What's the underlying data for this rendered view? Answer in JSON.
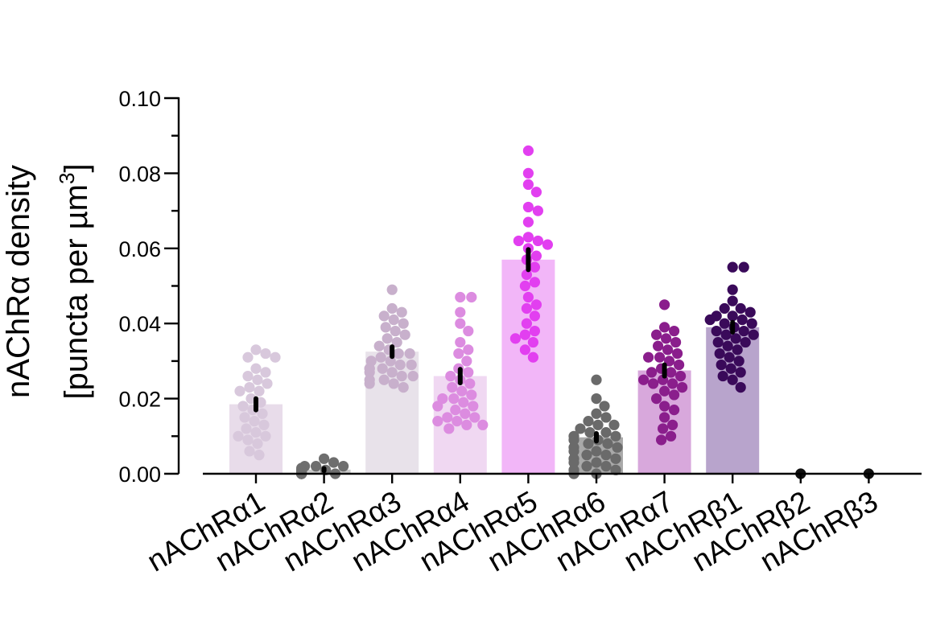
{
  "chart_data": {
    "type": "bar",
    "title": "",
    "ylabel_lines": [
      "nAChRα density",
      "[puncta per µm",
      "3",
      "]"
    ],
    "xlabel": "",
    "ylim": [
      0,
      0.1
    ],
    "y_major_ticks": [
      0,
      0.02,
      0.04,
      0.06,
      0.08,
      0.1
    ],
    "y_tick_labels": [
      "0.00",
      "0.02",
      "0.04",
      "0.06",
      "0.08",
      "0.10"
    ],
    "y_minor_ticks": [
      0.01,
      0.03,
      0.05,
      0.07,
      0.09
    ],
    "grid": false,
    "legend": "none",
    "categories": [
      "nAChRα1",
      "nAChRα2",
      "nAChRα3",
      "nAChRα4",
      "nAChRα5",
      "nAChRα6",
      "nAChRα7",
      "nAChRβ1",
      "nAChRβ2",
      "nAChRβ3"
    ],
    "means": [
      0.0185,
      0.0011,
      0.0325,
      0.026,
      0.057,
      0.0097,
      0.0275,
      0.039,
      0,
      0
    ],
    "sem": [
      0.0015,
      0.0003,
      0.0013,
      0.0018,
      0.0027,
      0.001,
      0.0015,
      0.0013,
      0,
      0
    ],
    "bar_colors": [
      "#e8dcea",
      "#cccccc",
      "#e8e2ea",
      "#f0d8f2",
      "#f2b6f8",
      "#a9a9a9",
      "#d8a8dc",
      "#b8a4cc",
      "#ffffff",
      "#ffffff"
    ],
    "point_colors": [
      "#d8c8dc",
      "#6e6e6e",
      "#c8b0cc",
      "#dc8ce0",
      "#e23ff0",
      "#6a6a6a",
      "#8a1e8c",
      "#3a0a5a",
      "#111111",
      "#111111"
    ],
    "points": [
      [
        0.033,
        0.032,
        0.031,
        0.031,
        0.028,
        0.027,
        0.026,
        0.025,
        0.023,
        0.022,
        0.022,
        0.02,
        0.019,
        0.018,
        0.017,
        0.016,
        0.014,
        0.013,
        0.012,
        0.011,
        0.01,
        0.01,
        0.009,
        0.008,
        0.006,
        0.005,
        0.024,
        0.015
      ],
      [
        0.004,
        0.003,
        0.002,
        0.002,
        0.002,
        0.001,
        0.001,
        0.001,
        0.001,
        0.0005,
        0.0005,
        0.0,
        0.0,
        0.0,
        0.0,
        0.0,
        0.0,
        0.0,
        0.0,
        0.0,
        0.0,
        0.0005,
        0.001,
        0.0015
      ],
      [
        0.049,
        0.044,
        0.043,
        0.042,
        0.041,
        0.04,
        0.039,
        0.038,
        0.037,
        0.036,
        0.035,
        0.034,
        0.033,
        0.032,
        0.031,
        0.03,
        0.029,
        0.029,
        0.028,
        0.028,
        0.027,
        0.027,
        0.026,
        0.026,
        0.025,
        0.024,
        0.024,
        0.023,
        0.032,
        0.03,
        0.028,
        0.025
      ],
      [
        0.047,
        0.047,
        0.043,
        0.04,
        0.038,
        0.035,
        0.033,
        0.032,
        0.03,
        0.028,
        0.027,
        0.026,
        0.025,
        0.024,
        0.023,
        0.022,
        0.021,
        0.02,
        0.019,
        0.018,
        0.017,
        0.016,
        0.015,
        0.014,
        0.014,
        0.013,
        0.013,
        0.012,
        0.02,
        0.018,
        0.015
      ],
      [
        0.086,
        0.08,
        0.077,
        0.075,
        0.071,
        0.07,
        0.067,
        0.063,
        0.062,
        0.062,
        0.061,
        0.06,
        0.058,
        0.057,
        0.055,
        0.053,
        0.051,
        0.05,
        0.047,
        0.045,
        0.044,
        0.042,
        0.04,
        0.038,
        0.037,
        0.036,
        0.035,
        0.033,
        0.031
      ],
      [
        0.025,
        0.02,
        0.018,
        0.016,
        0.015,
        0.014,
        0.013,
        0.013,
        0.012,
        0.011,
        0.011,
        0.01,
        0.01,
        0.009,
        0.009,
        0.008,
        0.008,
        0.007,
        0.007,
        0.006,
        0.006,
        0.005,
        0.005,
        0.004,
        0.004,
        0.003,
        0.003,
        0.002,
        0.002,
        0.001,
        0.001,
        0.0,
        0.0,
        0.0
      ],
      [
        0.045,
        0.039,
        0.038,
        0.037,
        0.036,
        0.035,
        0.034,
        0.033,
        0.032,
        0.031,
        0.03,
        0.029,
        0.028,
        0.027,
        0.026,
        0.025,
        0.025,
        0.024,
        0.023,
        0.022,
        0.021,
        0.02,
        0.018,
        0.017,
        0.015,
        0.013,
        0.012,
        0.01,
        0.009,
        0.031,
        0.027,
        0.024
      ],
      [
        0.055,
        0.055,
        0.049,
        0.046,
        0.044,
        0.044,
        0.043,
        0.042,
        0.042,
        0.041,
        0.04,
        0.04,
        0.039,
        0.038,
        0.038,
        0.037,
        0.036,
        0.035,
        0.034,
        0.033,
        0.032,
        0.031,
        0.03,
        0.029,
        0.028,
        0.027,
        0.026,
        0.025,
        0.023,
        0.041,
        0.037,
        0.035
      ],
      [
        0
      ],
      [
        0
      ]
    ]
  }
}
